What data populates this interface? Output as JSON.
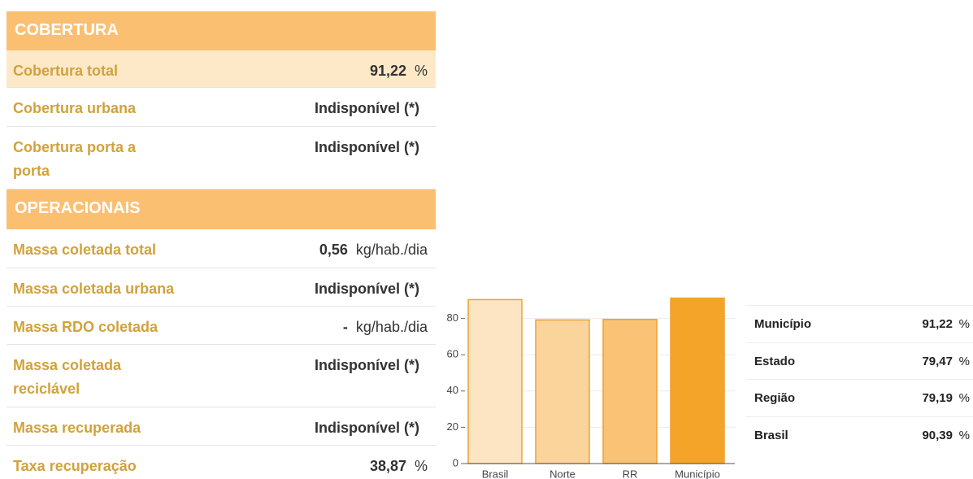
{
  "sections": [
    {
      "title": "COBERTURA",
      "rows": [
        {
          "label": "Cobertura total",
          "value": "91,22",
          "unit": "%"
        },
        {
          "label": "Cobertura urbana",
          "value": "Indisponível (*)"
        },
        {
          "label": "Cobertura porta a porta",
          "value": "Indisponível (*)"
        }
      ]
    },
    {
      "title": "OPERACIONAIS",
      "rows": [
        {
          "label": "Massa coletada total",
          "value": "0,56",
          "unit": "kg/hab./dia"
        },
        {
          "label": "Massa coletada urbana",
          "value": "Indisponível (*)"
        },
        {
          "label": "Massa RDO coletada",
          "value": "-",
          "unit": "kg/hab./dia"
        },
        {
          "label": "Massa coletada reciclável",
          "value": "Indisponível (*)"
        },
        {
          "label": "Massa recuperada",
          "value": "Indisponível (*)"
        },
        {
          "label": "Taxa recuperação",
          "value": "38,87",
          "unit": "%"
        }
      ]
    }
  ],
  "chart_data": {
    "type": "bar",
    "categories": [
      "Brasil",
      "Norte",
      "RR",
      "Município"
    ],
    "values": [
      90.39,
      79.19,
      79.47,
      91.22
    ],
    "colors": [
      "#fde5c3",
      "#fbd49c",
      "#f9c274",
      "#f5a42a"
    ],
    "ylim": [
      0,
      100
    ],
    "yticks": [
      0,
      20,
      40,
      60,
      80
    ],
    "grid": true
  },
  "comparison": {
    "rows": [
      {
        "label": "Município",
        "value": "91,22",
        "unit": "%"
      },
      {
        "label": "Estado",
        "value": "79,47",
        "unit": "%"
      },
      {
        "label": "Região",
        "value": "79,19",
        "unit": "%"
      },
      {
        "label": "Brasil",
        "value": "90,39",
        "unit": "%"
      }
    ]
  }
}
